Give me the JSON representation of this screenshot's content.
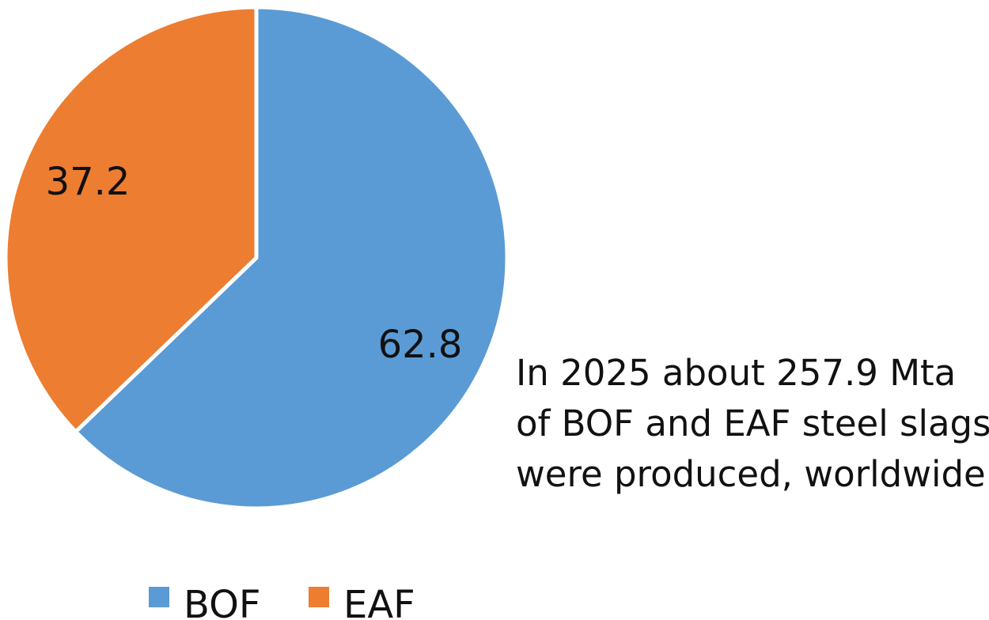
{
  "chart_data": {
    "type": "pie",
    "categories": [
      "BOF",
      "EAF"
    ],
    "values": [
      62.8,
      37.2
    ],
    "data_labels": [
      "62.8",
      "37.2"
    ],
    "colors": [
      "#5B9BD5",
      "#ED7D31"
    ],
    "start": "12 o'clock",
    "direction": "clockwise",
    "legend_position": "bottom",
    "annotation": [
      "In 2025 about 257.9 Mta",
      "of BOF and EAF steel slags",
      "were produced, worldwide"
    ]
  }
}
